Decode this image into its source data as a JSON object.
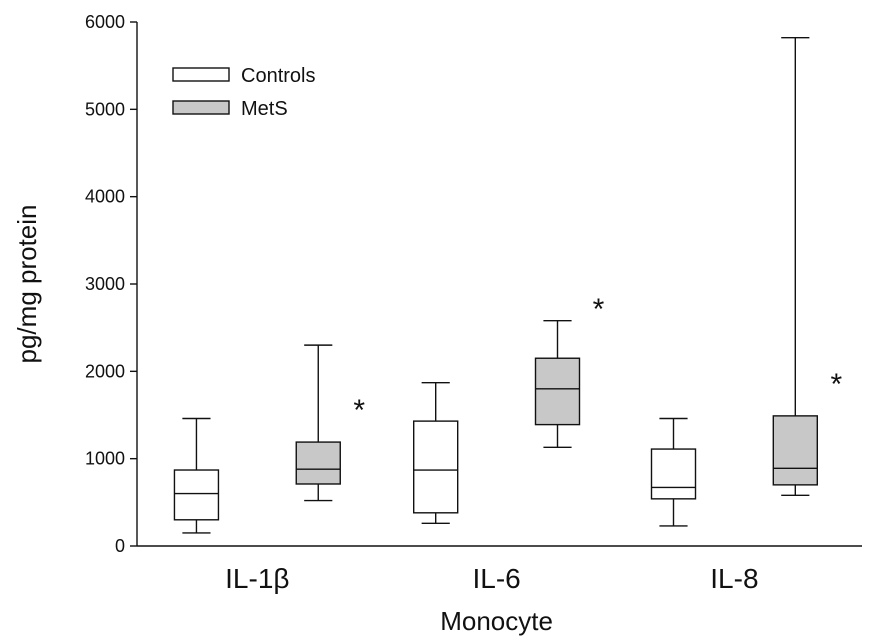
{
  "chart_data": {
    "type": "box",
    "title": "",
    "xlabel": "Monocyte",
    "ylabel": "pg/mg protein",
    "ylim": [
      0,
      6000
    ],
    "yticks": [
      "0",
      "1000",
      "2000",
      "3000",
      "4000",
      "5000",
      "6000"
    ],
    "categories": [
      "IL-1β",
      "IL-6",
      "IL-8"
    ],
    "legend_position": "top-left",
    "series": [
      {
        "name": "Controls",
        "color": "#ffffff",
        "boxes": [
          {
            "min": 150,
            "q1": 300,
            "median": 600,
            "q3": 870,
            "max": 1460
          },
          {
            "min": 260,
            "q1": 380,
            "median": 870,
            "q3": 1430,
            "max": 1870
          },
          {
            "min": 230,
            "q1": 540,
            "median": 670,
            "q3": 1110,
            "max": 1460
          }
        ]
      },
      {
        "name": "MetS",
        "color": "#c8c8c8",
        "boxes": [
          {
            "min": 520,
            "q1": 710,
            "median": 880,
            "q3": 1190,
            "max": 2300
          },
          {
            "min": 1130,
            "q1": 1390,
            "median": 1800,
            "q3": 2150,
            "max": 2580
          },
          {
            "min": 580,
            "q1": 700,
            "median": 890,
            "q3": 1490,
            "max": 5820
          }
        ]
      }
    ],
    "significance_markers": [
      "*",
      "*",
      "*"
    ]
  }
}
